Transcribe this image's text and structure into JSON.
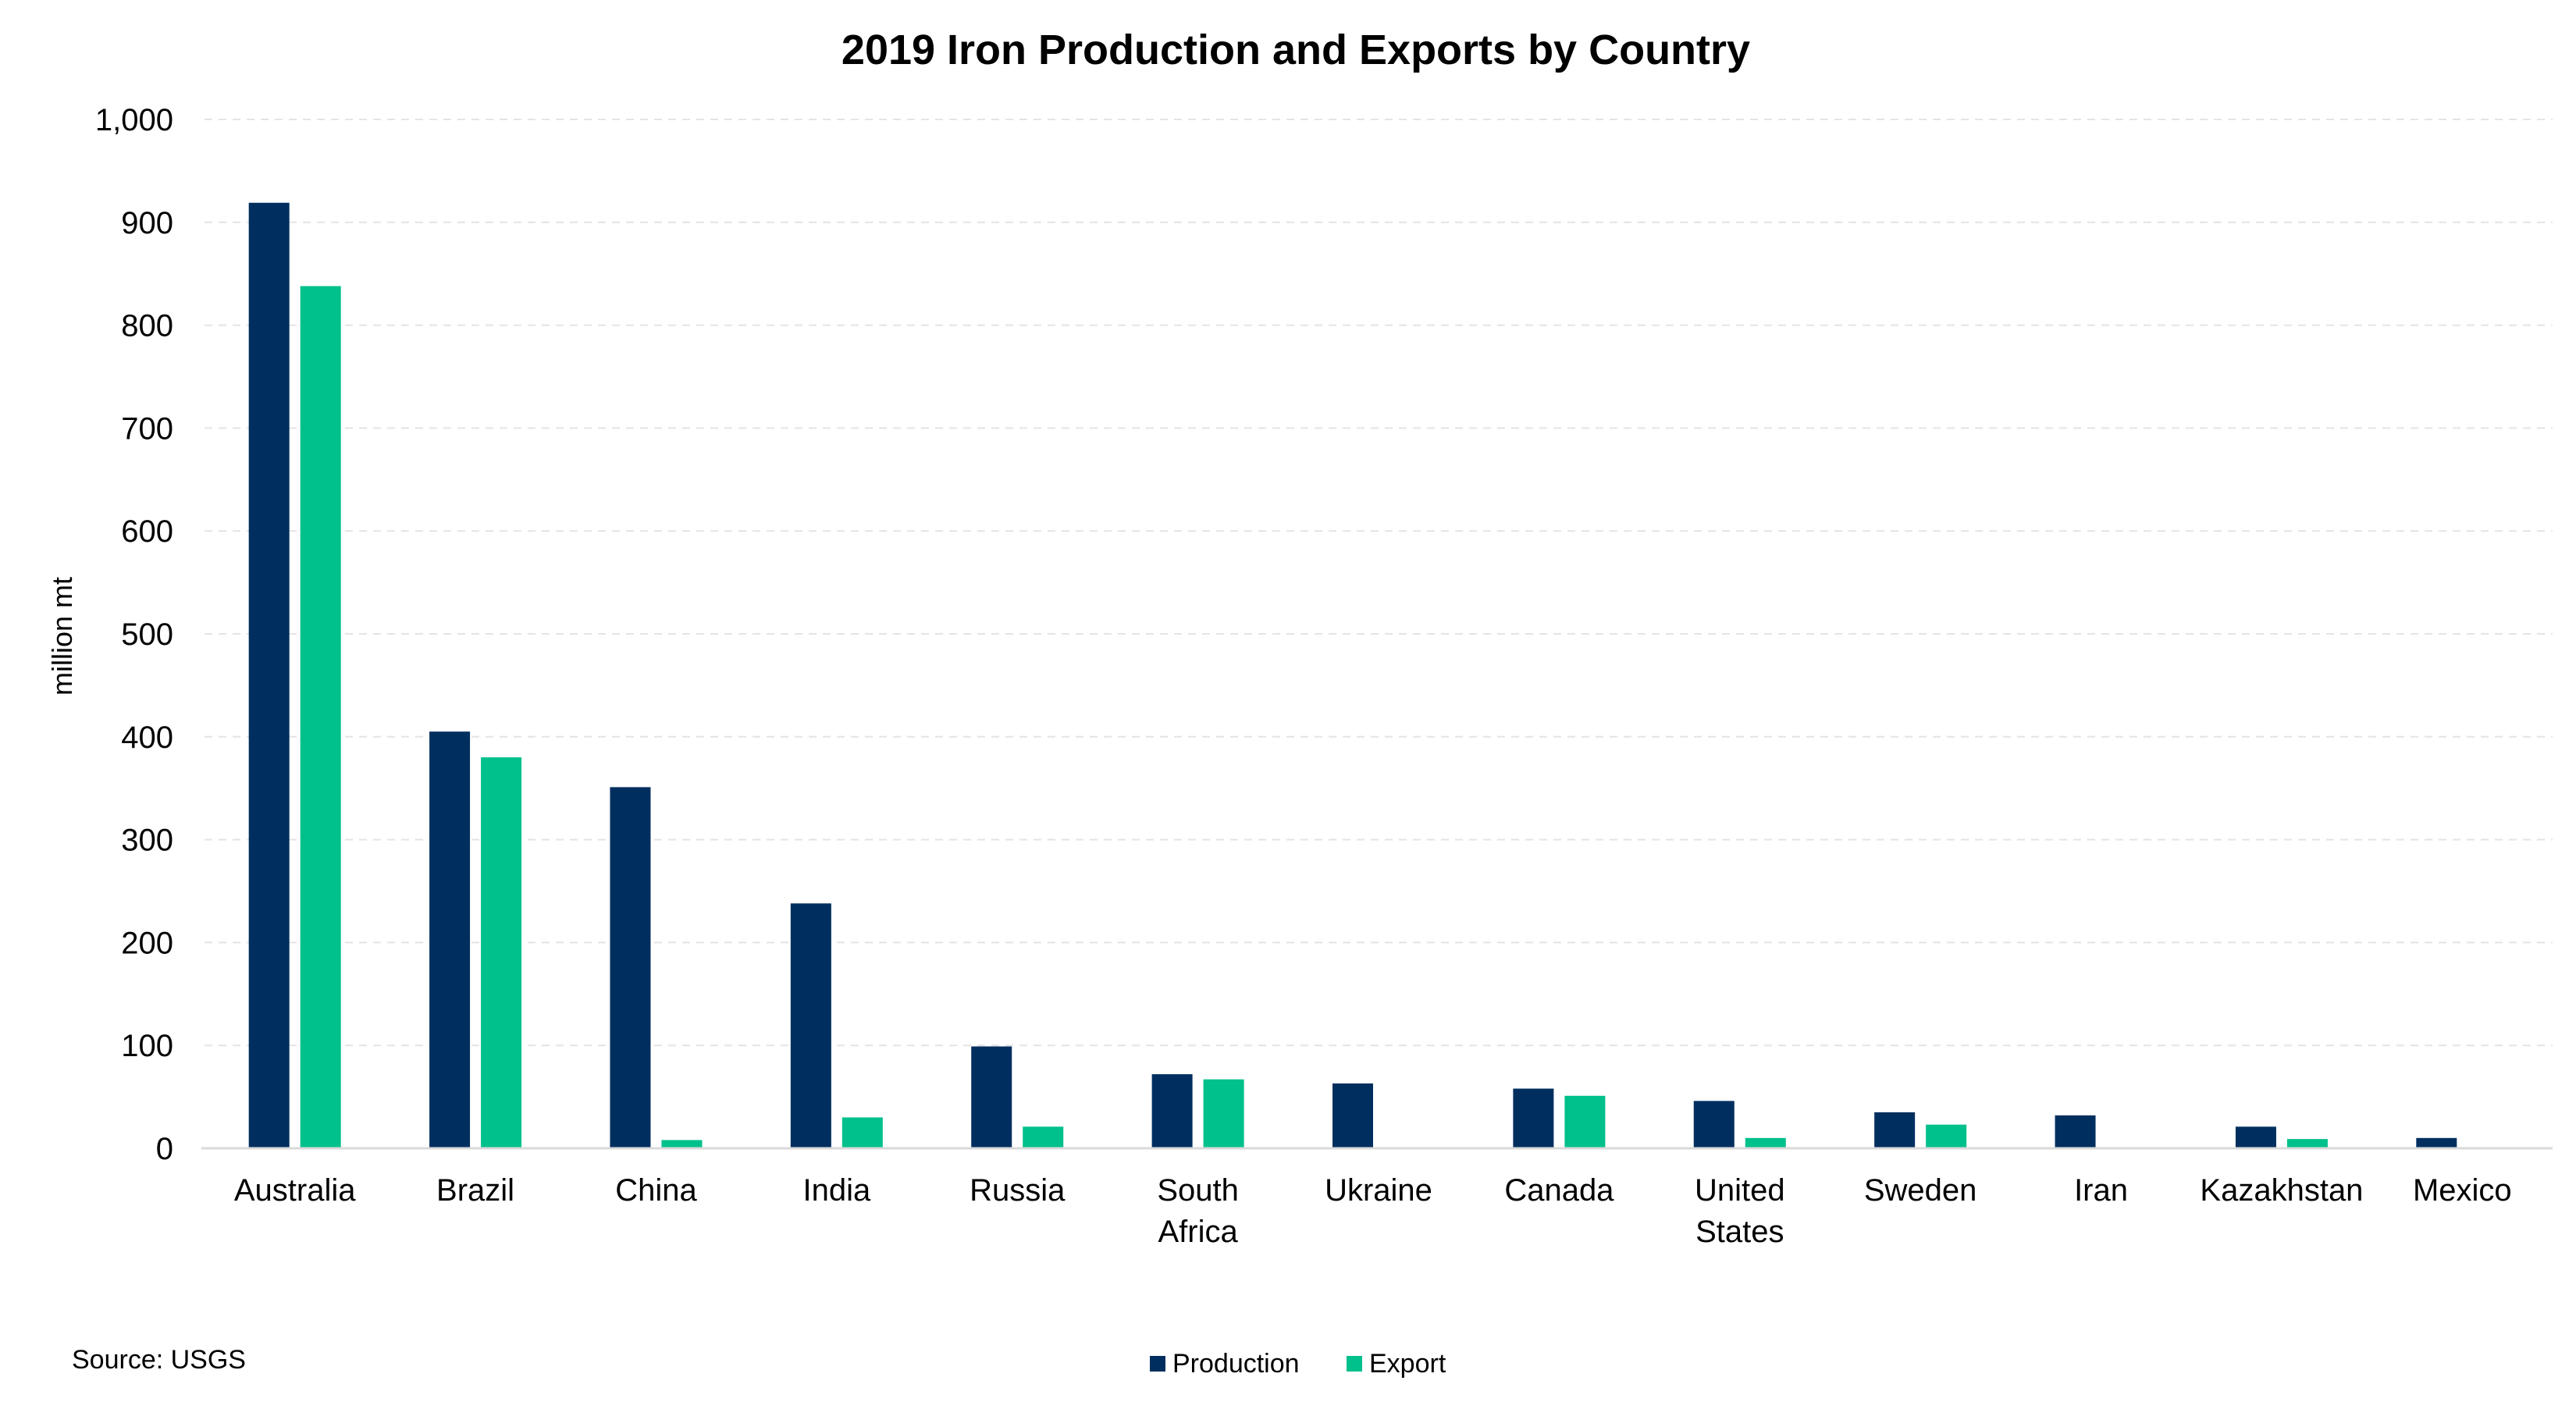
{
  "chart_data": {
    "type": "bar",
    "title": "2019 Iron Production and Exports by Country",
    "xlabel": "",
    "ylabel": "million mt",
    "ylim": [
      0,
      1000
    ],
    "yticks": [
      "0",
      "100",
      "200",
      "300",
      "400",
      "500",
      "600",
      "700",
      "800",
      "900",
      "1,000"
    ],
    "ytick_values": [
      0,
      100,
      200,
      300,
      400,
      500,
      600,
      700,
      800,
      900,
      1000
    ],
    "grid": true,
    "legend_position": "bottom-center",
    "categories": [
      "Australia",
      "Brazil",
      "China",
      "India",
      "Russia",
      "South Africa",
      "Ukraine",
      "Canada",
      "United States",
      "Sweden",
      "Iran",
      "Kazakhstan",
      "Mexico"
    ],
    "series": [
      {
        "name": "Production",
        "color": "#002f5f",
        "values": [
          919,
          405,
          351,
          238,
          99,
          72,
          63,
          58,
          46,
          35,
          32,
          21,
          10
        ]
      },
      {
        "name": "Export",
        "color": "#00c08b",
        "values": [
          838,
          380,
          8,
          30,
          21,
          67,
          0,
          51,
          10,
          23,
          0,
          9,
          0
        ]
      }
    ],
    "source_note": "Source: USGS"
  }
}
